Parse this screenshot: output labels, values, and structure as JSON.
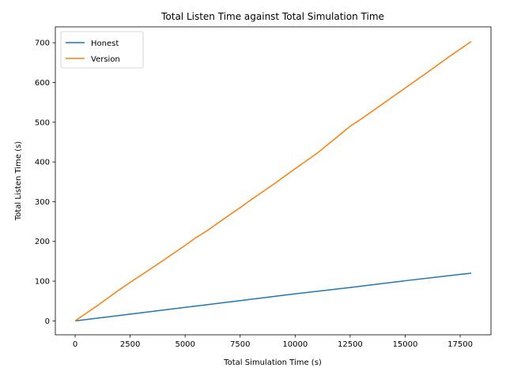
{
  "chart_data": {
    "type": "line",
    "title": "Total Listen Time against Total Simulation Time",
    "xlabel": "Total Simulation Time (s)",
    "ylabel": "Total Listen Time (s)",
    "xlim": [
      -900,
      18900
    ],
    "ylim": [
      -35,
      740
    ],
    "xticks": [
      0,
      2500,
      5000,
      7500,
      10000,
      12500,
      15000,
      17500
    ],
    "xtick_labels": [
      "0",
      "2500",
      "5000",
      "7500",
      "10000",
      "12500",
      "15000",
      "17500"
    ],
    "yticks": [
      0,
      100,
      200,
      300,
      400,
      500,
      600,
      700
    ],
    "ytick_labels": [
      "0",
      "100",
      "200",
      "300",
      "400",
      "500",
      "600",
      "700"
    ],
    "grid": false,
    "legend": "top-left",
    "series": [
      {
        "name": "Honest",
        "color": "#1f77b4",
        "x": [
          0,
          2500,
          5000,
          7500,
          10000,
          12500,
          15000,
          17500,
          18000
        ],
        "y": [
          0,
          17,
          34,
          51,
          68,
          84,
          101,
          117,
          120
        ]
      },
      {
        "name": "Version",
        "color": "#ff7f0e",
        "x": [
          0,
          1000,
          2000,
          2500,
          3000,
          4000,
          5000,
          5500,
          6000,
          7000,
          7500,
          8000,
          9000,
          10000,
          11000,
          12000,
          12500,
          13000,
          14000,
          15000,
          16000,
          17000,
          18000
        ],
        "y": [
          0,
          38,
          78,
          97,
          115,
          152,
          190,
          210,
          227,
          266,
          285,
          305,
          343,
          383,
          422,
          467,
          490,
          508,
          547,
          586,
          625,
          665,
          703
        ]
      }
    ]
  }
}
